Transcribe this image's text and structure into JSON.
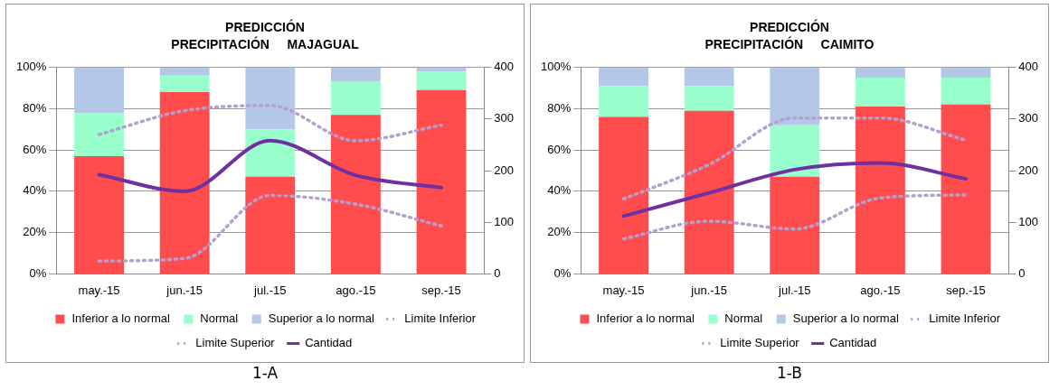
{
  "chart_data": [
    {
      "type": "bar",
      "title": "PREDICCIÓN",
      "subtitle": "PRECIPITACIÓN     MAJAGUAL",
      "categories": [
        "may.-15",
        "jun.-15",
        "jul.-15",
        "ago.-15",
        "sep.-15"
      ],
      "stacked": true,
      "grid": "y",
      "legend": "bottom",
      "marker": "none",
      "ylim": [
        0,
        100
      ],
      "yticks": [
        {
          "value": 0,
          "label": "0%"
        },
        {
          "value": 20,
          "label": "20%"
        },
        {
          "value": 40,
          "label": "40%"
        },
        {
          "value": 60,
          "label": "60%"
        },
        {
          "value": 80,
          "label": "80%"
        },
        {
          "value": 100,
          "label": "100%"
        }
      ],
      "y2lim": [
        0,
        400
      ],
      "y2ticks": [
        0,
        100,
        200,
        300,
        400
      ],
      "series": [
        {
          "name": "Inferior a lo normal",
          "color": "#ff4d4d",
          "values": [
            57,
            88,
            47,
            77,
            89
          ]
        },
        {
          "name": "Normal",
          "color": "#99ffcc",
          "values": [
            21,
            8,
            23,
            16,
            9
          ]
        },
        {
          "name": "Superior a lo normal",
          "color": "#b4c7e7",
          "values": [
            22,
            4,
            30,
            7,
            2
          ]
        },
        {
          "name": "Limite Inferior",
          "type": "line",
          "axis": "y2",
          "line_style": "dotted",
          "color": "#b4a0d0",
          "values": [
            25,
            30,
            152,
            135,
            93
          ]
        },
        {
          "name": "Limite Superior",
          "type": "line",
          "axis": "y2",
          "line_style": "dotted",
          "color": "#b4a0d0",
          "values": [
            270,
            316,
            326,
            258,
            288
          ]
        },
        {
          "name": "Cantidad",
          "type": "line",
          "axis": "y2",
          "line_style": "solid",
          "color": "#7030a0",
          "values": [
            192,
            160,
            258,
            191,
            167
          ]
        }
      ],
      "annotations": [
        "1-A"
      ]
    },
    {
      "type": "bar",
      "title": "PREDICCIÓN",
      "subtitle": "PRECIPITACIÓN     CAIMITO",
      "categories": [
        "may.-15",
        "jun.-15",
        "jul.-15",
        "ago.-15",
        "sep.-15"
      ],
      "stacked": true,
      "grid": "y",
      "legend": "bottom",
      "marker": "none",
      "ylim": [
        0,
        100
      ],
      "yticks": [
        {
          "value": 0,
          "label": "0%"
        },
        {
          "value": 20,
          "label": "20%"
        },
        {
          "value": 40,
          "label": "40%"
        },
        {
          "value": 60,
          "label": "60%"
        },
        {
          "value": 80,
          "label": "80%"
        },
        {
          "value": 100,
          "label": "100%"
        }
      ],
      "y2lim": [
        0,
        400
      ],
      "y2ticks": [
        0,
        100,
        200,
        300,
        400
      ],
      "series": [
        {
          "name": "Inferior a lo normal",
          "color": "#ff4d4d",
          "values": [
            76,
            79,
            47,
            81,
            82
          ]
        },
        {
          "name": "Normal",
          "color": "#99ffcc",
          "values": [
            15,
            12,
            25,
            14,
            13
          ]
        },
        {
          "name": "Superior a lo normal",
          "color": "#b4c7e7",
          "values": [
            9,
            9,
            28,
            5,
            5
          ]
        },
        {
          "name": "Limite Inferior",
          "type": "line",
          "axis": "y2",
          "line_style": "dotted",
          "color": "#b4a0d0",
          "values": [
            68,
            102,
            87,
            147,
            153
          ]
        },
        {
          "name": "Limite Superior",
          "type": "line",
          "axis": "y2",
          "line_style": "dotted",
          "color": "#b4a0d0",
          "values": [
            145,
            212,
            302,
            302,
            259
          ]
        },
        {
          "name": "Cantidad",
          "type": "line",
          "axis": "y2",
          "line_style": "solid",
          "color": "#7030a0",
          "values": [
            112,
            157,
            202,
            215,
            184
          ]
        }
      ],
      "annotations": [
        "1-B"
      ]
    }
  ]
}
